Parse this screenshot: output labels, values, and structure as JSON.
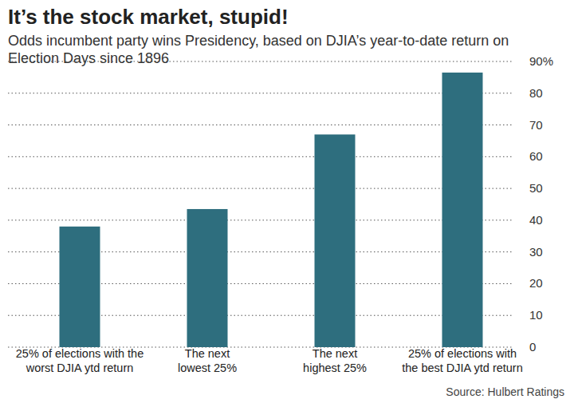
{
  "chart_data": {
    "type": "bar",
    "title": "It’s the stock market, stupid!",
    "subtitle": "Odds incumbent party wins Presidency, based on DJIA’s year-to-date return on Election Days since 1896",
    "categories": [
      "25% of elections with the\nworst DJIA ytd return",
      "The next\nlowest 25%",
      "The next\nhighest 25%",
      "25% of elections with\nthe best DJIA ytd return"
    ],
    "values": [
      38,
      43.5,
      67,
      86.5
    ],
    "color": "#2e6e7e",
    "ylim": [
      0,
      90
    ],
    "yticks": [
      0,
      10,
      20,
      30,
      40,
      50,
      60,
      70,
      80,
      {
        "value": 90,
        "label": "90%"
      }
    ],
    "grid": true,
    "source": "Source: Hulbert Ratings"
  }
}
